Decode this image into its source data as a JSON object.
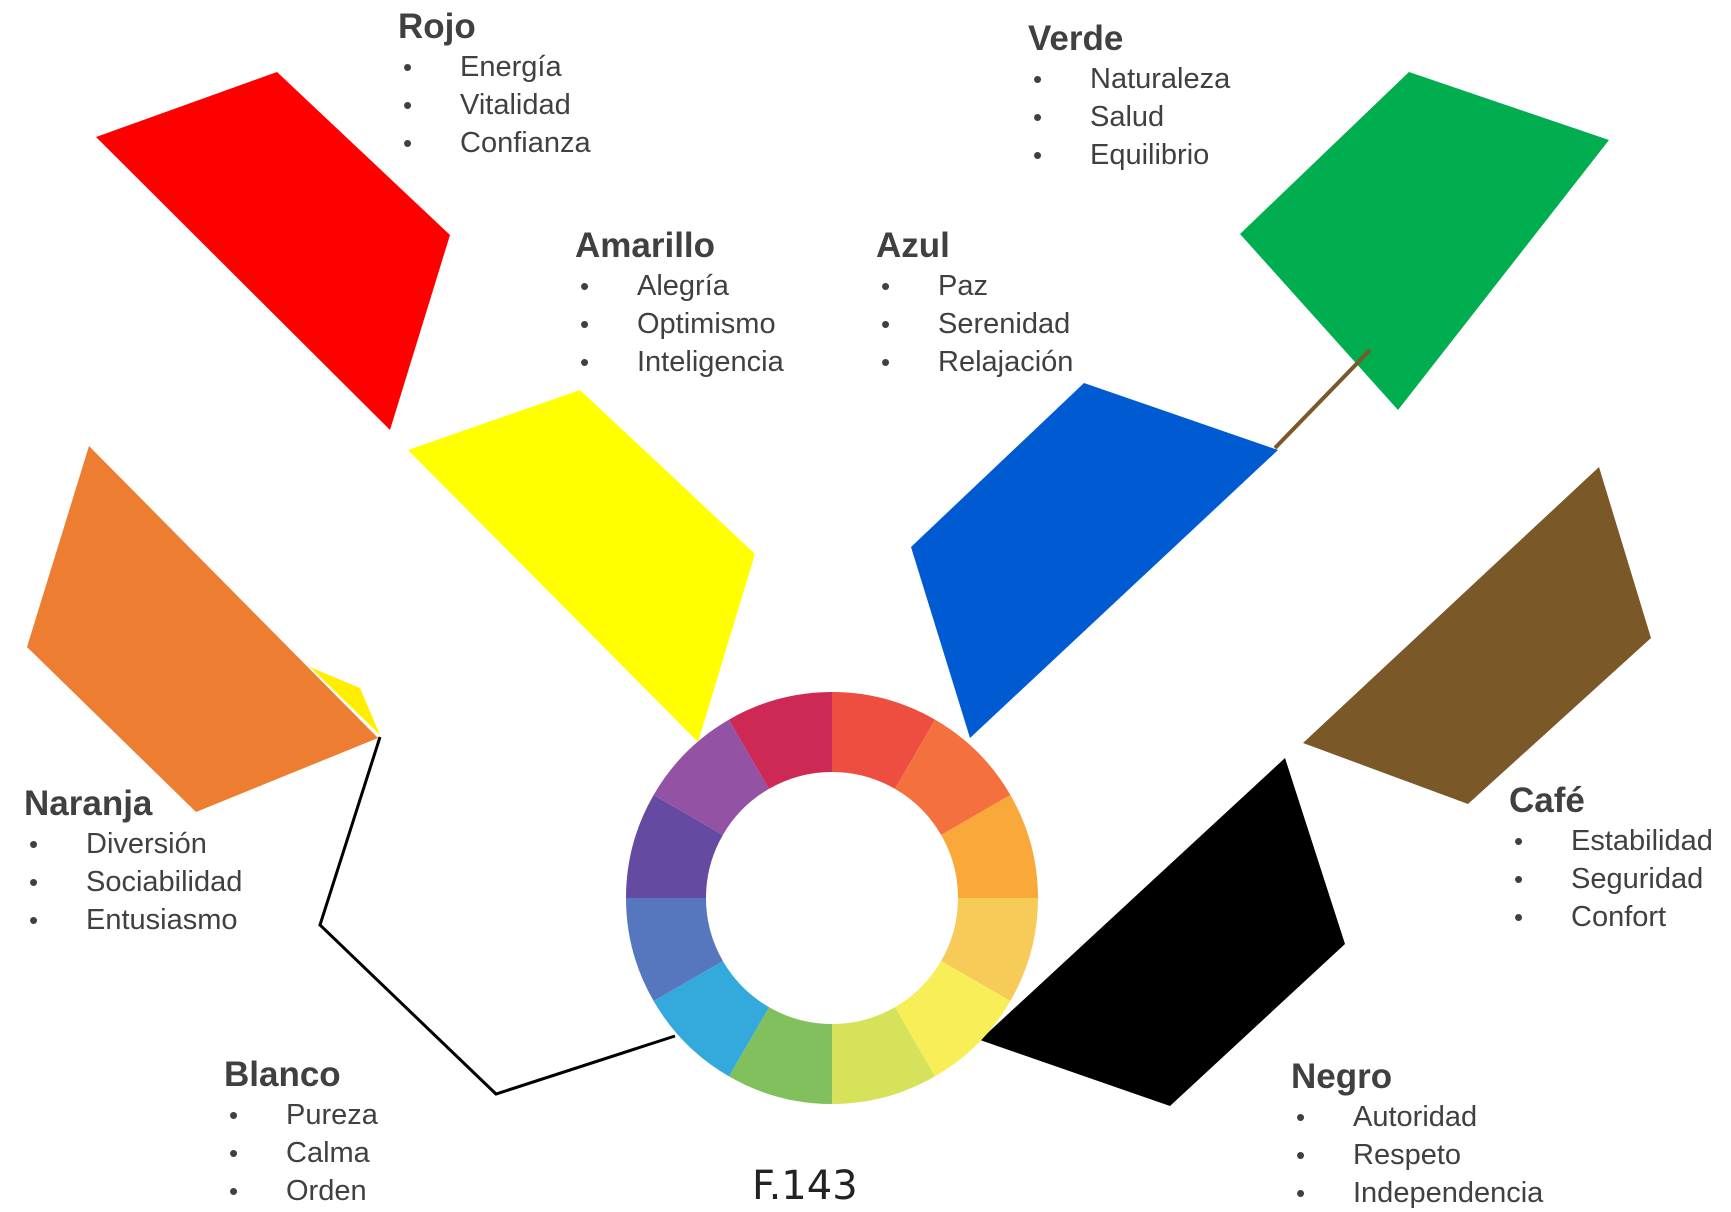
{
  "colors": [
    {
      "id": "rojo",
      "title": "Rojo",
      "fill": "#ff0000",
      "items": [
        "Energía",
        "Vitalidad",
        "Confianza"
      ]
    },
    {
      "id": "verde",
      "title": "Verde",
      "fill": "#00ad4f",
      "items": [
        "Naturaleza",
        "Salud",
        "Equilibrio"
      ]
    },
    {
      "id": "amarillo",
      "title": "Amarillo",
      "fill": "#ffff00",
      "items": [
        "Alegría",
        "Optimismo",
        "Inteligencia"
      ]
    },
    {
      "id": "azul",
      "title": "Azul",
      "fill": "#005bd3",
      "items": [
        "Paz",
        "Serenidad",
        "Relajación"
      ]
    },
    {
      "id": "naranja",
      "title": "Naranja",
      "fill": "#ed7d31",
      "items": [
        "Diversión",
        "Sociabilidad",
        "Entusiasmo"
      ]
    },
    {
      "id": "cafe",
      "title": "Café",
      "fill": "#7a5828",
      "items": [
        "Estabilidad",
        "Seguridad",
        "Confort"
      ]
    },
    {
      "id": "blanco",
      "title": "Blanco",
      "fill": "#ffffff",
      "items": [
        "Pureza",
        "Calma",
        "Orden"
      ]
    },
    {
      "id": "negro",
      "title": "Negro",
      "fill": "#000000",
      "items": [
        "Autoridad",
        "Respeto",
        "Independencia"
      ]
    }
  ],
  "wheel_colors": [
    "#ee4e40",
    "#f4703e",
    "#f9a83a",
    "#f7cb58",
    "#f8ee58",
    "#d6e35a",
    "#82c05d",
    "#34a9db",
    "#5676bd",
    "#654aa2",
    "#9452a5",
    "#cd2954"
  ],
  "caption": "F.143"
}
